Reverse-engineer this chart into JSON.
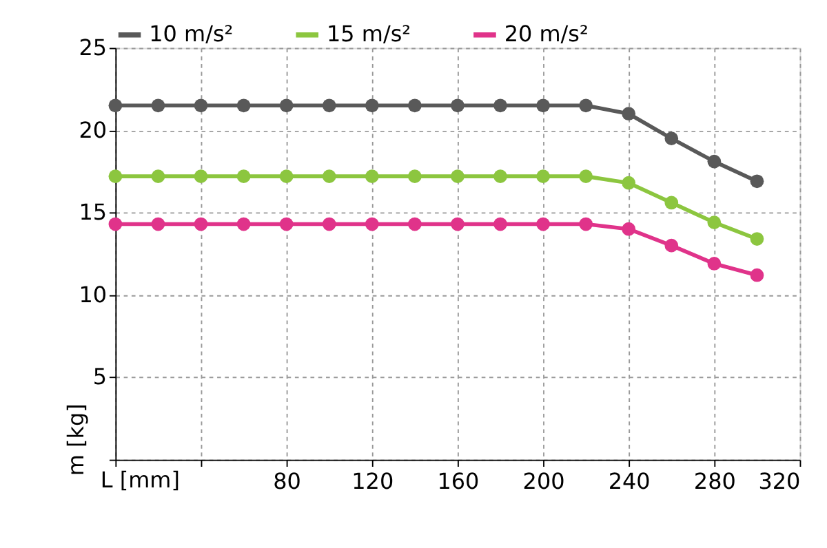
{
  "chart_data": {
    "type": "line",
    "xlabel": "L [mm]",
    "ylabel": "m [kg]",
    "x": [
      0,
      20,
      40,
      60,
      80,
      100,
      120,
      140,
      160,
      180,
      200,
      220,
      240,
      260,
      280,
      300
    ],
    "series": [
      {
        "name": "10 m/s²",
        "color": "#595959",
        "values": [
          21.5,
          21.5,
          21.5,
          21.5,
          21.5,
          21.5,
          21.5,
          21.5,
          21.5,
          21.5,
          21.5,
          21.5,
          21.0,
          19.5,
          18.1,
          16.9
        ]
      },
      {
        "name": "15 m/s²",
        "color": "#8cc63f",
        "values": [
          17.2,
          17.2,
          17.2,
          17.2,
          17.2,
          17.2,
          17.2,
          17.2,
          17.2,
          17.2,
          17.2,
          17.2,
          16.8,
          15.6,
          14.4,
          13.4
        ]
      },
      {
        "name": "20 m/s²",
        "color": "#e0338a",
        "values": [
          14.3,
          14.3,
          14.3,
          14.3,
          14.3,
          14.3,
          14.3,
          14.3,
          14.3,
          14.3,
          14.3,
          14.3,
          14.0,
          13.0,
          11.9,
          11.2
        ]
      }
    ],
    "xlim": [
      0,
      320
    ],
    "xticks": [
      {
        "value": 0,
        "label": null
      },
      {
        "value": 40,
        "label": null
      },
      80,
      120,
      160,
      200,
      240,
      280,
      320
    ],
    "ylim": [
      0,
      25
    ],
    "yticks": [
      {
        "value": 0,
        "label": null
      },
      5,
      10,
      15,
      20,
      25
    ],
    "grid": true,
    "legend": "top",
    "marker": "circle",
    "line_style": "solid"
  }
}
